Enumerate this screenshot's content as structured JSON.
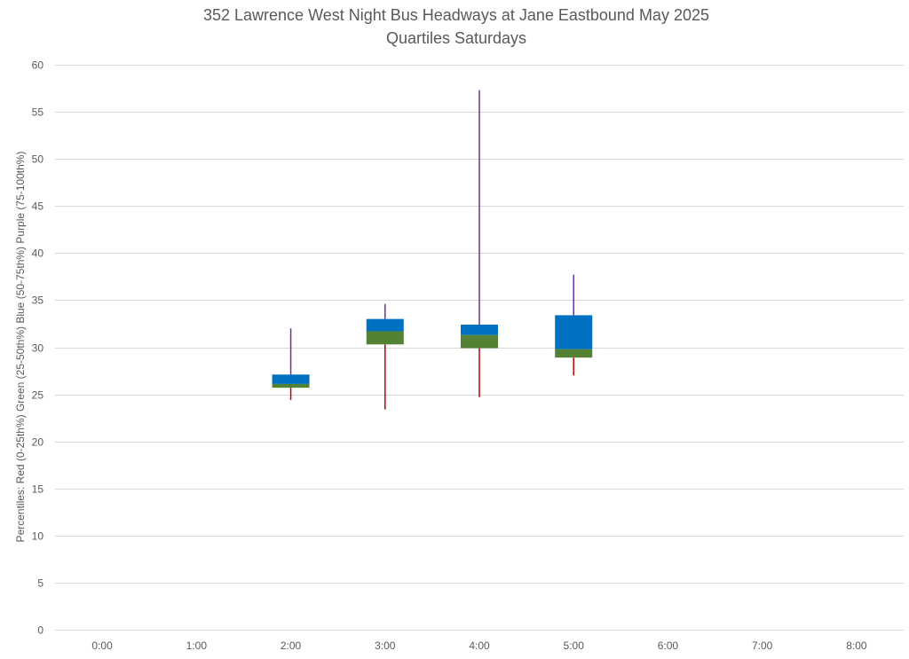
{
  "chart_data": {
    "type": "box",
    "title": "352 Lawrence West Night Bus Headways at Jane Eastbound May 2025",
    "subtitle": "Quartiles Saturdays",
    "ylabel": "Percentiles:  Red (0-25th%)  Green (25-50th%)  Blue (50-75th%)  Purple (75-100th%)",
    "xlabel": "",
    "ylim": [
      0,
      60
    ],
    "yticks": [
      0,
      5,
      10,
      15,
      20,
      25,
      30,
      35,
      40,
      45,
      50,
      55,
      60
    ],
    "grid": true,
    "legend": "none",
    "categories": [
      "0:00",
      "1:00",
      "2:00",
      "3:00",
      "4:00",
      "5:00",
      "6:00",
      "7:00",
      "8:00"
    ],
    "boxes": [
      {
        "category": "2:00",
        "min": 24.4,
        "q1": 25.7,
        "median": 26.1,
        "q3": 27.1,
        "max": 32.0
      },
      {
        "category": "3:00",
        "min": 23.4,
        "q1": 30.3,
        "median": 31.7,
        "q3": 33.0,
        "max": 34.6
      },
      {
        "category": "4:00",
        "min": 24.7,
        "q1": 29.9,
        "median": 31.3,
        "q3": 32.4,
        "max": 57.3
      },
      {
        "category": "5:00",
        "min": 27.0,
        "q1": 28.9,
        "median": 29.8,
        "q3": 33.4,
        "max": 37.7
      }
    ],
    "colors": {
      "lower_whisker": "#C00000",
      "lower_box": "#548235",
      "upper_box": "#0070C0",
      "upper_whisker": "#7030A0",
      "grid": "#D9D9D9",
      "text": "#595959"
    }
  }
}
